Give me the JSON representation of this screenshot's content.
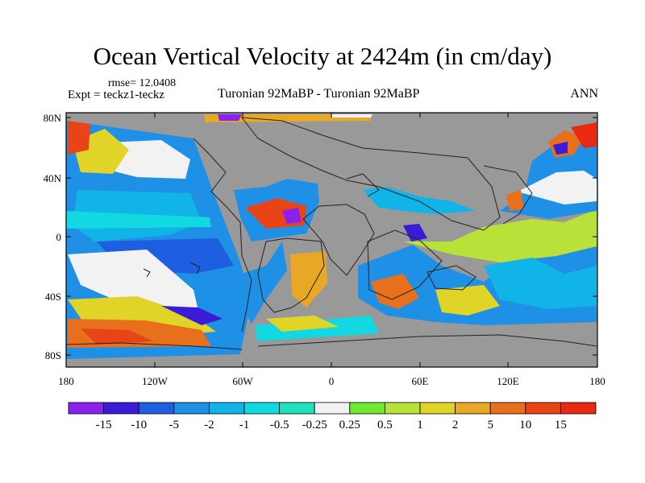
{
  "title": "Ocean Vertical Velocity at 2424m (in cm/day)",
  "rmse": "rmse= 12.0408",
  "experiment": "Expt = teckz1-teckz",
  "comparison": "Turonian  92MaBP - Turonian  92MaBP",
  "season": "ANN",
  "lat_ticks": [
    "80N",
    "40N",
    "0",
    "40S",
    "80S"
  ],
  "lon_ticks": [
    "180",
    "120W",
    "60W",
    "0",
    "60E",
    "120E",
    "180"
  ],
  "colorbar": {
    "labels": [
      "-15",
      "-10",
      "-5",
      "-2",
      "-1",
      "-0.5",
      "-0.25",
      "0.25",
      "0.5",
      "1",
      "2",
      "5",
      "10",
      "15"
    ],
    "colors": [
      "#8a22ee",
      "#3a1cd8",
      "#1e5ee0",
      "#1e90e6",
      "#10b4e6",
      "#12d8e2",
      "#1fe0b8",
      "#f2f2f2",
      "#6ee832",
      "#b8e23a",
      "#e0d428",
      "#e8a825",
      "#e8701c",
      "#e84418",
      "#e82a12"
    ]
  },
  "colors": {
    "land": "#999999",
    "coast": "#222222"
  }
}
